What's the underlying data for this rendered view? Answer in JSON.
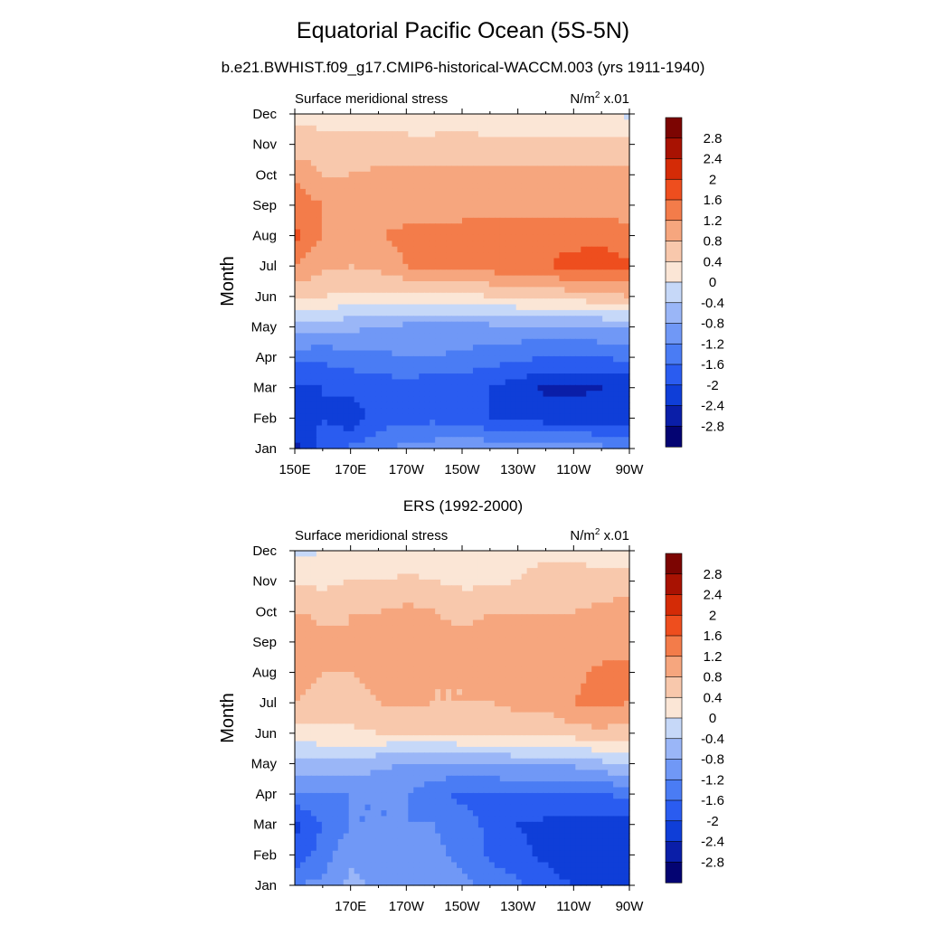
{
  "figure": {
    "title": "Equatorial Pacific Ocean (5S-5N)",
    "subtitle": "b.e21.BWHIST.f09_g17.CMIP6-historical-WACCM.003 (yrs 1911-1940)"
  },
  "colorbar": {
    "levels": [
      -2.8,
      -2.4,
      -2.0,
      -1.6,
      -1.2,
      -0.8,
      -0.4,
      0.0,
      0.4,
      0.8,
      1.2,
      1.6,
      2.0,
      2.4,
      2.8
    ],
    "labels": [
      "-2.8",
      "-2.4",
      "-2",
      "-1.6",
      "-1.2",
      "-0.8",
      "-0.4",
      "0",
      "0.4",
      "0.8",
      "1.2",
      "1.6",
      "2",
      "2.4",
      "2.8"
    ],
    "colors": [
      "#040472",
      "#0a1ea8",
      "#0f3ed8",
      "#2a5cf0",
      "#4a7cf4",
      "#7098f6",
      "#9ab6f7",
      "#c6d8f8",
      "#fbe6d6",
      "#f8c8ac",
      "#f6a67e",
      "#f37c4a",
      "#ee4e1e",
      "#d42b06",
      "#a81202",
      "#7c0502"
    ]
  },
  "chart_data": [
    {
      "type": "heatmap",
      "title": "",
      "left_label": "Surface meridional stress",
      "units_prefix": "N/m",
      "units_sup": "2",
      "units_suffix": " x.01",
      "ylabel": "Month",
      "xlabel": "",
      "xlim": [
        150,
        270
      ],
      "x_ticks": [
        150,
        170,
        190,
        210,
        230,
        250,
        270
      ],
      "x_tick_labels": [
        "150E",
        "170E",
        "170W",
        "150W",
        "130W",
        "110W",
        "90W"
      ],
      "y_tick_labels": [
        "Jan",
        "Feb",
        "Mar",
        "Apr",
        "May",
        "Jun",
        "Jul",
        "Aug",
        "Sep",
        "Oct",
        "Nov",
        "Dec"
      ],
      "x": [
        150,
        160,
        170,
        180,
        190,
        200,
        210,
        220,
        230,
        240,
        250,
        260,
        270
      ],
      "months": [
        1,
        2,
        3,
        4,
        5,
        6,
        7,
        8,
        9,
        10,
        11,
        12
      ],
      "values": [
        [
          -2.5,
          -1.8,
          -1.5,
          -1.3,
          -1.1,
          -1.0,
          -0.9,
          -0.9,
          -0.9,
          -0.9,
          -1.0,
          -1.1,
          -1.2
        ],
        [
          -2.2,
          -2.0,
          -2.3,
          -1.8,
          -1.7,
          -1.7,
          -1.8,
          -2.0,
          -2.1,
          -2.2,
          -2.2,
          -2.2,
          -2.2
        ],
        [
          -2.1,
          -2.0,
          -1.9,
          -1.8,
          -1.8,
          -1.9,
          -1.9,
          -2.0,
          -2.2,
          -2.5,
          -2.5,
          -2.4,
          -2.3
        ],
        [
          -1.5,
          -1.5,
          -1.4,
          -1.3,
          -1.2,
          -1.2,
          -1.3,
          -1.4,
          -1.5,
          -1.6,
          -1.6,
          -1.6,
          -1.5
        ],
        [
          -0.5,
          -0.6,
          -0.7,
          -0.8,
          -0.9,
          -0.9,
          -0.9,
          -0.9,
          -0.9,
          -0.9,
          -0.9,
          -0.8,
          -0.8
        ],
        [
          0.5,
          0.4,
          0.3,
          0.3,
          0.3,
          0.3,
          0.3,
          0.4,
          0.5,
          0.5,
          0.6,
          0.7,
          0.8
        ],
        [
          1.2,
          0.9,
          0.8,
          0.9,
          1.2,
          1.4,
          1.4,
          1.4,
          1.5,
          1.6,
          1.7,
          1.8,
          1.7
        ],
        [
          1.7,
          1.2,
          1.1,
          1.2,
          1.3,
          1.3,
          1.4,
          1.4,
          1.4,
          1.5,
          1.5,
          1.5,
          1.3
        ],
        [
          1.5,
          1.2,
          1.0,
          1.0,
          1.0,
          1.0,
          1.0,
          1.0,
          1.0,
          1.0,
          1.0,
          1.0,
          1.0
        ],
        [
          1.1,
          0.8,
          0.8,
          0.9,
          0.9,
          0.9,
          0.9,
          0.9,
          0.9,
          0.9,
          0.9,
          0.9,
          0.9
        ],
        [
          0.6,
          0.6,
          0.5,
          0.5,
          0.5,
          0.5,
          0.5,
          0.5,
          0.5,
          0.5,
          0.5,
          0.5,
          0.5
        ],
        [
          0.3,
          0.2,
          0.2,
          0.3,
          0.2,
          0.2,
          0.3,
          0.1,
          0.1,
          0.2,
          0.2,
          0.1,
          -0.1
        ]
      ]
    },
    {
      "type": "heatmap",
      "title": "ERS (1992-2000)",
      "left_label": "Surface meridional stress",
      "units_prefix": "N/m",
      "units_sup": "2",
      "units_suffix": " x.01",
      "ylabel": "Month",
      "xlabel": "",
      "xlim": [
        150,
        270
      ],
      "x_ticks": [
        170,
        190,
        210,
        230,
        250,
        270
      ],
      "x_tick_labels": [
        "170E",
        "170W",
        "150W",
        "130W",
        "110W",
        "90W"
      ],
      "y_tick_labels": [
        "Jan",
        "Feb",
        "Mar",
        "Apr",
        "May",
        "Jun",
        "Jul",
        "Aug",
        "Sep",
        "Oct",
        "Nov",
        "Dec"
      ],
      "x": [
        150,
        160,
        170,
        180,
        190,
        200,
        210,
        220,
        230,
        240,
        250,
        260,
        270
      ],
      "months": [
        1,
        2,
        3,
        4,
        5,
        6,
        7,
        8,
        9,
        10,
        11,
        12
      ],
      "values": [
        [
          -1.2,
          -1.1,
          -0.7,
          -0.9,
          -1.0,
          -1.0,
          -1.1,
          -1.3,
          -1.5,
          -1.8,
          -2.0,
          -2.0,
          -2.0
        ],
        [
          -1.9,
          -1.4,
          -0.9,
          -1.0,
          -1.2,
          -1.1,
          -1.3,
          -1.7,
          -1.9,
          -2.1,
          -2.3,
          -2.3,
          -2.1
        ],
        [
          -2.1,
          -1.6,
          -1.2,
          -1.2,
          -1.2,
          -1.2,
          -1.4,
          -1.7,
          -2.0,
          -2.1,
          -2.2,
          -2.2,
          -2.1
        ],
        [
          -1.3,
          -1.3,
          -1.2,
          -1.2,
          -1.2,
          -1.5,
          -1.7,
          -1.7,
          -1.6,
          -1.6,
          -1.6,
          -1.6,
          -1.5
        ],
        [
          -0.5,
          -0.5,
          -0.5,
          -0.7,
          -0.8,
          -0.8,
          -0.9,
          -0.8,
          -0.7,
          -0.7,
          -0.7,
          -0.5,
          -0.4
        ],
        [
          0.2,
          0.3,
          0.3,
          0.4,
          0.4,
          0.4,
          0.5,
          0.5,
          0.5,
          0.5,
          0.6,
          0.7,
          0.6
        ],
        [
          0.8,
          0.7,
          0.7,
          0.8,
          0.9,
          0.8,
          0.8,
          0.8,
          0.9,
          0.9,
          1.2,
          1.3,
          1.2
        ],
        [
          0.9,
          0.8,
          0.8,
          0.9,
          0.9,
          0.8,
          0.8,
          0.9,
          0.9,
          0.9,
          1.1,
          1.3,
          1.3
        ],
        [
          1.2,
          0.9,
          0.8,
          0.9,
          1.0,
          0.9,
          0.9,
          0.9,
          1.0,
          0.9,
          0.9,
          1.0,
          1.1
        ],
        [
          0.8,
          0.7,
          0.8,
          0.8,
          0.9,
          0.8,
          0.7,
          0.8,
          0.8,
          0.8,
          0.8,
          0.9,
          1.1
        ],
        [
          0.3,
          0.3,
          0.4,
          0.4,
          0.5,
          0.4,
          0.3,
          0.3,
          0.4,
          0.6,
          0.6,
          0.5,
          0.6
        ],
        [
          -0.1,
          0.0,
          0.1,
          0.1,
          0.0,
          0.1,
          0.1,
          0.2,
          0.2,
          0.3,
          0.3,
          0.2,
          0.2
        ]
      ]
    }
  ]
}
